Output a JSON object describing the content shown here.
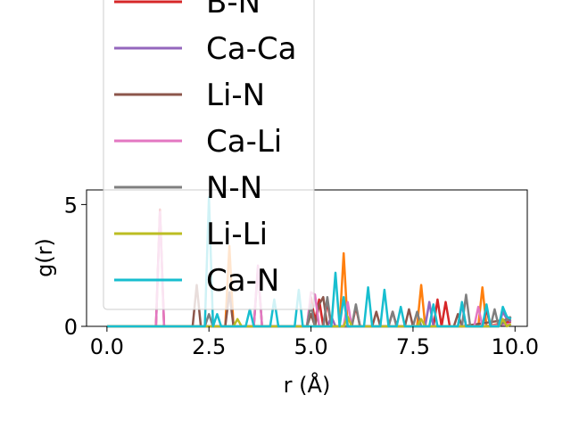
{
  "chart_data": {
    "type": "line",
    "xlabel": "r (Å)",
    "ylabel": "g(r)",
    "xlim": [
      -0.5,
      10.3
    ],
    "ylim": [
      0,
      5.6
    ],
    "xticks": [
      0.0,
      2.5,
      5.0,
      7.5,
      10.0
    ],
    "xtick_labels": [
      "0.0",
      "2.5",
      "5.0",
      "7.5",
      "10.0"
    ],
    "yticks": [
      0,
      5
    ],
    "ytick_labels": [
      "0",
      "5"
    ],
    "grid": false,
    "legend_location": "upper-left, overflowing top",
    "series": [
      {
        "name": "B-N",
        "color": "#d62728",
        "x": [
          0,
          1.2,
          1.3,
          1.4,
          4.9,
          5.0,
          5.1,
          5.2,
          5.3,
          5.4,
          5.5,
          6.0,
          6.1,
          6.2,
          6.9,
          7.0,
          7.1,
          8.0,
          8.1,
          8.2,
          8.3,
          8.4,
          9.2,
          9.3,
          9.4,
          9.9
        ],
        "y": [
          0,
          0,
          4.8,
          0,
          0,
          1.2,
          0.2,
          1.1,
          0,
          1.0,
          0,
          0,
          0.8,
          0,
          0,
          0.6,
          0,
          0,
          1.1,
          0,
          1.0,
          0,
          0,
          0.7,
          0,
          0.2
        ]
      },
      {
        "name": "Ca-Ca",
        "color": "#9467bd",
        "x": [
          0,
          3.7,
          3.8,
          3.9,
          5.4,
          5.5,
          5.6,
          7.8,
          7.9,
          8.0,
          8.6,
          8.7,
          8.8,
          9.6,
          9.7,
          9.8,
          9.9
        ],
        "y": [
          0,
          0,
          0,
          0,
          0,
          0.4,
          0,
          0,
          1.0,
          0,
          0,
          0.9,
          0,
          0,
          0.6,
          0.3,
          0.2
        ]
      },
      {
        "name": "Li-N",
        "color": "#8c564b",
        "x": [
          0,
          2.1,
          2.2,
          2.3,
          2.9,
          3.0,
          3.1,
          3.6,
          3.7,
          3.8,
          4.9,
          5.0,
          5.1,
          5.2,
          5.3,
          5.4,
          6.5,
          6.6,
          6.7,
          7.3,
          7.4,
          7.5,
          8.5,
          8.6,
          8.7,
          9.9
        ],
        "y": [
          0,
          0,
          1.7,
          0,
          0,
          1.4,
          0,
          0,
          2.4,
          0,
          0,
          0.5,
          0,
          0.9,
          1.2,
          0,
          0,
          0.6,
          0,
          0,
          0.7,
          0,
          0,
          0.5,
          0,
          0.3
        ]
      },
      {
        "name": "Ca-Li",
        "color": "#e377c2",
        "x": [
          0,
          1.2,
          1.3,
          1.4,
          3.6,
          3.7,
          3.8,
          4.9,
          5.0,
          5.1,
          5.2,
          5.3,
          5.8,
          5.9,
          6.0,
          9.0,
          9.1,
          9.2,
          9.9
        ],
        "y": [
          0,
          0,
          4.7,
          0,
          0,
          2.5,
          0,
          0,
          1.4,
          1.3,
          0,
          0,
          0,
          1.0,
          0,
          0,
          0.8,
          0,
          0.1
        ]
      },
      {
        "name": "N-N",
        "color": "#7f7f7f",
        "x": [
          0,
          2.4,
          2.5,
          2.6,
          4.9,
          5.0,
          5.1,
          5.3,
          5.4,
          5.5,
          6.0,
          6.1,
          6.2,
          6.9,
          7.0,
          7.1,
          7.5,
          7.6,
          7.7,
          8.7,
          8.8,
          8.9,
          9.4,
          9.5,
          9.6,
          9.9
        ],
        "y": [
          0,
          0,
          0.5,
          0,
          0,
          0.9,
          0,
          0,
          1.2,
          0,
          0,
          0.9,
          0,
          0,
          0.6,
          0,
          0,
          0.6,
          0,
          0,
          1.3,
          0,
          0,
          0.7,
          0,
          0.4
        ]
      },
      {
        "name": "Li-Li",
        "color": "#bcbd22",
        "x": [
          0,
          3.1,
          3.2,
          3.3,
          5.8,
          5.9,
          6.0,
          7.6,
          7.7,
          7.8,
          9.6,
          9.7,
          9.8,
          9.9
        ],
        "y": [
          0,
          0,
          0.3,
          0,
          0,
          0.4,
          0,
          0,
          0.3,
          0,
          0,
          0.3,
          0,
          0.1
        ]
      },
      {
        "name": "Ca-N",
        "color": "#17becf",
        "x": [
          0,
          2.4,
          2.5,
          2.6,
          2.7,
          2.8,
          3.4,
          3.5,
          3.6,
          4.0,
          4.1,
          4.2,
          4.6,
          4.7,
          4.8,
          5.5,
          5.6,
          5.7,
          5.8,
          5.9,
          6.3,
          6.4,
          6.5,
          6.7,
          6.8,
          6.9,
          7.1,
          7.2,
          7.3,
          7.9,
          8.0,
          8.1,
          8.6,
          8.7,
          8.8,
          9.2,
          9.3,
          9.4,
          9.6,
          9.7,
          9.8,
          9.9
        ],
        "y": [
          0,
          0,
          5.3,
          0,
          0.5,
          0,
          0,
          0.7,
          0,
          0,
          1.1,
          0,
          0,
          1.5,
          0,
          0,
          2.2,
          0,
          1.2,
          0,
          0,
          1.6,
          0,
          0,
          1.5,
          0,
          0,
          0.8,
          0,
          0,
          0.9,
          0,
          0,
          1.0,
          0,
          0,
          0.9,
          0,
          0,
          0.8,
          0.4,
          0.3
        ]
      },
      {
        "name": "",
        "color": "#ff7f0e",
        "x": [
          0,
          2.9,
          3.0,
          3.1,
          5.7,
          5.8,
          5.9,
          7.6,
          7.7,
          7.8,
          9.1,
          9.2,
          9.3,
          9.9
        ],
        "y": [
          0,
          0,
          3.3,
          0,
          0,
          3.0,
          0,
          0,
          1.7,
          0,
          0,
          1.6,
          0,
          0.2
        ]
      }
    ]
  }
}
